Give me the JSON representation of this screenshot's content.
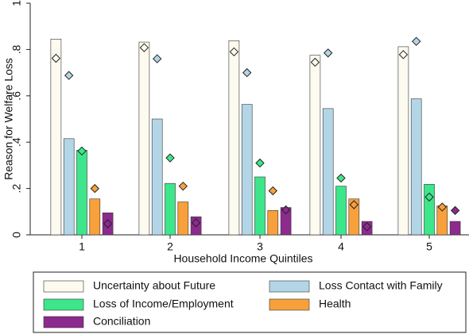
{
  "chart_data": {
    "type": "bar",
    "y_label": "Reason for Welfare Loss",
    "x_label": "Household Income Quintiles",
    "categories": [
      "1",
      "2",
      "3",
      "4",
      "5"
    ],
    "ylim": [
      0,
      1
    ],
    "yticks": [
      0,
      {
        "value": 0.2,
        "label": ".2"
      },
      {
        "value": 0.4,
        "label": ".4"
      },
      {
        "value": 0.6,
        "label": ".6"
      },
      {
        "value": 0.8,
        "label": ".8"
      },
      1
    ],
    "series": [
      {
        "name": "Uncertainty about Future",
        "color": "#fdfaf0",
        "values": [
          0.845,
          0.832,
          0.838,
          0.775,
          0.812
        ],
        "marker_values": [
          0.762,
          0.808,
          0.79,
          0.745,
          0.778
        ]
      },
      {
        "name": "Loss Contact with Family",
        "color": "#b3d6e6",
        "values": [
          0.415,
          0.5,
          0.563,
          0.545,
          0.587
        ],
        "marker_values": [
          0.688,
          0.76,
          0.7,
          0.785,
          0.835
        ]
      },
      {
        "name": "Loss of Income/Employment",
        "color": "#3ee68b",
        "values": [
          0.365,
          0.222,
          0.25,
          0.21,
          0.218
        ],
        "marker_values": [
          0.362,
          0.332,
          0.31,
          0.245,
          0.163
        ]
      },
      {
        "name": "Health",
        "color": "#f7a03c",
        "values": [
          0.155,
          0.142,
          0.105,
          0.155,
          0.125
        ],
        "marker_values": [
          0.2,
          0.21,
          0.19,
          0.13,
          0.12
        ]
      },
      {
        "name": "Conciliation",
        "color": "#8c2a8e",
        "values": [
          0.095,
          0.078,
          0.118,
          0.058,
          0.058
        ],
        "marker_values": [
          0.048,
          0.052,
          0.108,
          0.035,
          0.105
        ]
      }
    ]
  }
}
